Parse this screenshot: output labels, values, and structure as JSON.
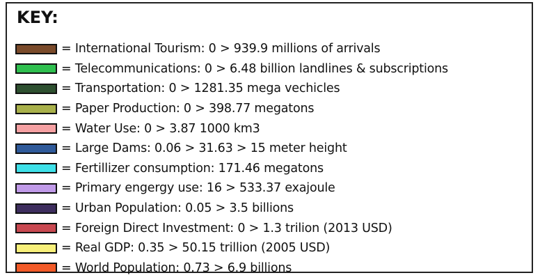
{
  "title": "KEY:",
  "items": [
    {
      "color": "#7a4a2a",
      "label": "= International Tourism: 0 > 939.9 millions of arrivals"
    },
    {
      "color": "#2fbf4f",
      "label": "= Telecommunications: 0 > 6.48 billion landlines & subscriptions"
    },
    {
      "color": "#2e5030",
      "label": "= Transportation: 0 > 1281.35 mega vechicles"
    },
    {
      "color": "#a8b04a",
      "label": "= Paper Production: 0 > 398.77 megatons"
    },
    {
      "color": "#f5a0a2",
      "label": "= Water Use: 0 > 3.87 1000 km3"
    },
    {
      "color": "#2f5a9a",
      "label": "= Large Dams: 0.06 > 31.63 > 15 meter height"
    },
    {
      "color": "#3ee0e8",
      "label": "= Fertillizer consumption: 171.46 megatons"
    },
    {
      "color": "#c09ae8",
      "label": "= Primary engergy use: 16 > 533.37 exajoule"
    },
    {
      "color": "#3e2e5e",
      "label": "= Urban Population: 0.05 > 3.5 billions"
    },
    {
      "color": "#c84850",
      "label": "= Foreign Direct Investment: 0 > 1.3 trilion (2013 USD)"
    },
    {
      "color": "#f8f07a",
      "label": "= Real GDP: 0.35 > 50.15 trillion (2005 USD)"
    },
    {
      "color": "#f25a28",
      "label": "= World Population: 0.73 > 6.9 billions"
    }
  ]
}
